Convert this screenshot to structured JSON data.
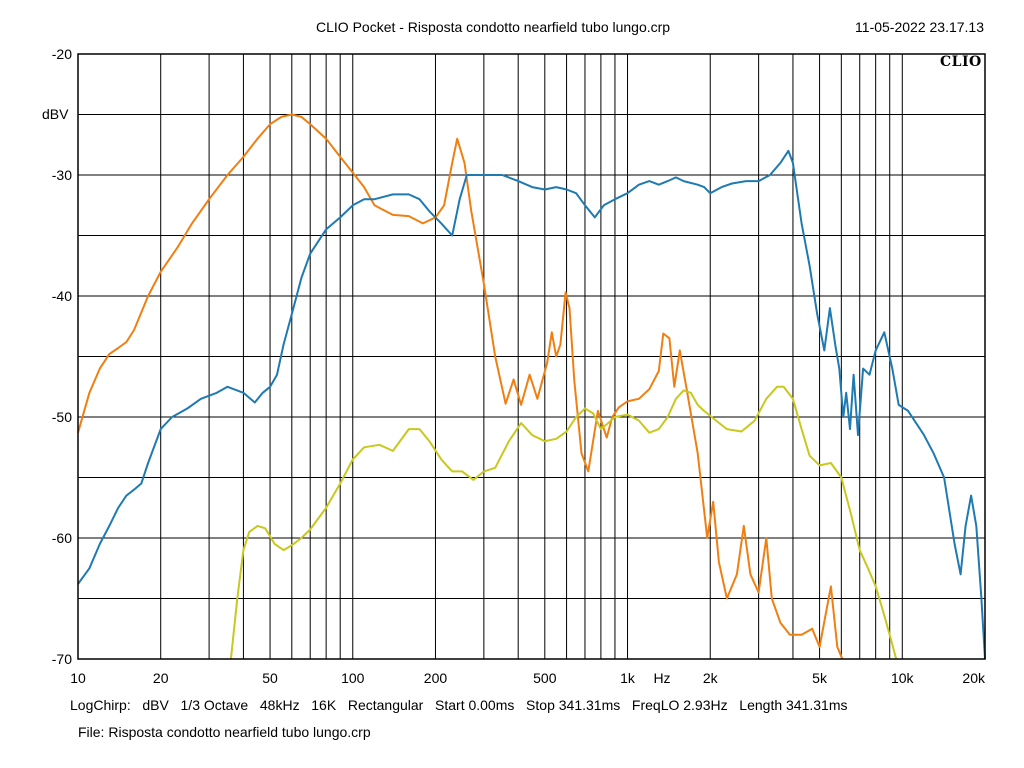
{
  "header": {
    "title": "CLIO Pocket - Risposta condotto nearfield tubo lungo.crp",
    "timestamp": "11-05-2022 23.17.13",
    "brand": "CLIO"
  },
  "footer": {
    "params": [
      "LogChirp:",
      "dBV",
      "1/3 Octave",
      "48kHz",
      "16K",
      "Rectangular",
      "Start 0.00ms",
      "Stop 341.31ms",
      "FreqLO 2.93Hz",
      "Length 341.31ms"
    ],
    "file_label": "File:",
    "file_name": "Risposta condotto nearfield tubo lungo.crp"
  },
  "chart_data": {
    "type": "line",
    "title": "CLIO Pocket - Risposta condotto nearfield tubo lungo.crp",
    "xlabel": "Hz",
    "ylabel": "dBV",
    "x_scale": "log",
    "xlim": [
      10,
      20000
    ],
    "ylim": [
      -70,
      -20
    ],
    "grid": true,
    "x_tick_labels": [
      {
        "value": 10,
        "label": "10"
      },
      {
        "value": 20,
        "label": "20"
      },
      {
        "value": 50,
        "label": "50"
      },
      {
        "value": 100,
        "label": "100"
      },
      {
        "value": 200,
        "label": "200"
      },
      {
        "value": 500,
        "label": "500"
      },
      {
        "value": 1000,
        "label": "1k"
      },
      {
        "value": 2000,
        "label": "2k"
      },
      {
        "value": 5000,
        "label": "5k"
      },
      {
        "value": 10000,
        "label": "10k"
      },
      {
        "value": 20000,
        "label": "20k"
      }
    ],
    "y_tick_labels": [
      {
        "value": -20,
        "label": "-20"
      },
      {
        "value": -30,
        "label": "-30"
      },
      {
        "value": -40,
        "label": "-40"
      },
      {
        "value": -50,
        "label": "-50"
      },
      {
        "value": -60,
        "label": "-60"
      },
      {
        "value": -70,
        "label": "-70"
      }
    ],
    "series": [
      {
        "color": "#f07f12",
        "points": [
          [
            10,
            -51.3
          ],
          [
            11,
            -48
          ],
          [
            12,
            -46
          ],
          [
            13,
            -44.8
          ],
          [
            14,
            -44.3
          ],
          [
            15,
            -43.8
          ],
          [
            16,
            -42.8
          ],
          [
            18,
            -40
          ],
          [
            20,
            -38
          ],
          [
            23,
            -36
          ],
          [
            26,
            -34
          ],
          [
            30,
            -32
          ],
          [
            35,
            -30
          ],
          [
            40,
            -28.5
          ],
          [
            45,
            -27
          ],
          [
            50,
            -25.8
          ],
          [
            55,
            -25.2
          ],
          [
            60,
            -25
          ],
          [
            65,
            -25.2
          ],
          [
            70,
            -25.8
          ],
          [
            80,
            -27
          ],
          [
            90,
            -28.5
          ],
          [
            100,
            -29.8
          ],
          [
            110,
            -31
          ],
          [
            120,
            -32.5
          ],
          [
            140,
            -33.3
          ],
          [
            160,
            -33.4
          ],
          [
            180,
            -34
          ],
          [
            200,
            -33.5
          ],
          [
            215,
            -32.5
          ],
          [
            230,
            -29
          ],
          [
            240,
            -27
          ],
          [
            255,
            -29
          ],
          [
            270,
            -33
          ],
          [
            300,
            -39
          ],
          [
            330,
            -45
          ],
          [
            360,
            -48.9
          ],
          [
            385,
            -46.9
          ],
          [
            410,
            -49
          ],
          [
            440,
            -46.5
          ],
          [
            470,
            -48.5
          ],
          [
            510,
            -45.5
          ],
          [
            530,
            -43
          ],
          [
            550,
            -45
          ],
          [
            570,
            -44
          ],
          [
            595,
            -39.7
          ],
          [
            615,
            -41
          ],
          [
            640,
            -47
          ],
          [
            680,
            -53
          ],
          [
            720,
            -54.5
          ],
          [
            780,
            -49.5
          ],
          [
            840,
            -51.7
          ],
          [
            880,
            -50
          ],
          [
            930,
            -49.2
          ],
          [
            1000,
            -48.7
          ],
          [
            1100,
            -48.5
          ],
          [
            1200,
            -47.7
          ],
          [
            1300,
            -46.2
          ],
          [
            1350,
            -43.1
          ],
          [
            1420,
            -43.5
          ],
          [
            1480,
            -47.5
          ],
          [
            1550,
            -44.5
          ],
          [
            1650,
            -48
          ],
          [
            1800,
            -53
          ],
          [
            1950,
            -60
          ],
          [
            2050,
            -57
          ],
          [
            2150,
            -62
          ],
          [
            2300,
            -65
          ],
          [
            2500,
            -63
          ],
          [
            2650,
            -59
          ],
          [
            2800,
            -63
          ],
          [
            3000,
            -64.5
          ],
          [
            3200,
            -60
          ],
          [
            3350,
            -65
          ],
          [
            3600,
            -67
          ],
          [
            3900,
            -68
          ],
          [
            4300,
            -68
          ],
          [
            4700,
            -67.5
          ],
          [
            5000,
            -69
          ],
          [
            5500,
            -64
          ],
          [
            5800,
            -69
          ],
          [
            6050,
            -70
          ]
        ]
      },
      {
        "color": "#1f7ab2",
        "points": [
          [
            10,
            -63.8
          ],
          [
            11,
            -62.5
          ],
          [
            12,
            -60.5
          ],
          [
            13,
            -59
          ],
          [
            14,
            -57.5
          ],
          [
            15,
            -56.5
          ],
          [
            16,
            -56
          ],
          [
            17,
            -55.5
          ],
          [
            18,
            -53.8
          ],
          [
            20,
            -51
          ],
          [
            22,
            -50
          ],
          [
            25,
            -49.3
          ],
          [
            28,
            -48.5
          ],
          [
            32,
            -48
          ],
          [
            35,
            -47.5
          ],
          [
            40,
            -48
          ],
          [
            44,
            -48.8
          ],
          [
            47,
            -48
          ],
          [
            50,
            -47.5
          ],
          [
            53,
            -46.5
          ],
          [
            56,
            -44
          ],
          [
            60,
            -41.5
          ],
          [
            65,
            -38.5
          ],
          [
            70,
            -36.5
          ],
          [
            80,
            -34.5
          ],
          [
            90,
            -33.5
          ],
          [
            100,
            -32.5
          ],
          [
            110,
            -32
          ],
          [
            120,
            -32
          ],
          [
            140,
            -31.6
          ],
          [
            160,
            -31.6
          ],
          [
            175,
            -32
          ],
          [
            190,
            -33
          ],
          [
            210,
            -34
          ],
          [
            230,
            -35
          ],
          [
            245,
            -32
          ],
          [
            260,
            -30
          ],
          [
            300,
            -30
          ],
          [
            350,
            -30
          ],
          [
            400,
            -30.5
          ],
          [
            450,
            -31
          ],
          [
            500,
            -31.2
          ],
          [
            550,
            -31
          ],
          [
            600,
            -31.2
          ],
          [
            650,
            -31.5
          ],
          [
            700,
            -32.5
          ],
          [
            760,
            -33.5
          ],
          [
            820,
            -32.5
          ],
          [
            900,
            -32
          ],
          [
            1000,
            -31.5
          ],
          [
            1100,
            -30.8
          ],
          [
            1200,
            -30.5
          ],
          [
            1300,
            -30.8
          ],
          [
            1400,
            -30.5
          ],
          [
            1500,
            -30.2
          ],
          [
            1600,
            -30.5
          ],
          [
            1800,
            -30.8
          ],
          [
            1900,
            -31
          ],
          [
            2000,
            -31.5
          ],
          [
            2200,
            -31
          ],
          [
            2400,
            -30.7
          ],
          [
            2700,
            -30.5
          ],
          [
            3000,
            -30.5
          ],
          [
            3300,
            -30
          ],
          [
            3600,
            -29
          ],
          [
            3850,
            -28
          ],
          [
            4000,
            -29
          ],
          [
            4300,
            -34
          ],
          [
            4600,
            -37.5
          ],
          [
            4900,
            -41.5
          ],
          [
            5200,
            -44.5
          ],
          [
            5450,
            -41
          ],
          [
            5700,
            -44
          ],
          [
            5900,
            -46
          ],
          [
            6100,
            -50
          ],
          [
            6250,
            -48
          ],
          [
            6450,
            -51
          ],
          [
            6650,
            -46.5
          ],
          [
            6900,
            -51.5
          ],
          [
            7200,
            -46
          ],
          [
            7600,
            -46.5
          ],
          [
            8000,
            -44.5
          ],
          [
            8600,
            -43
          ],
          [
            9200,
            -46
          ],
          [
            9700,
            -49
          ],
          [
            10500,
            -49.5
          ],
          [
            12000,
            -51.5
          ],
          [
            13000,
            -53
          ],
          [
            14200,
            -55
          ],
          [
            15500,
            -60.5
          ],
          [
            16300,
            -63
          ],
          [
            17000,
            -59
          ],
          [
            17800,
            -56.5
          ],
          [
            18600,
            -59
          ],
          [
            19400,
            -65
          ],
          [
            20000,
            -70
          ]
        ]
      },
      {
        "color": "#c8c81e",
        "points": [
          [
            36,
            -70
          ],
          [
            38,
            -65
          ],
          [
            40,
            -61
          ],
          [
            42,
            -59.5
          ],
          [
            45,
            -59
          ],
          [
            48,
            -59.2
          ],
          [
            52,
            -60.5
          ],
          [
            56,
            -61
          ],
          [
            60,
            -60.6
          ],
          [
            65,
            -60
          ],
          [
            70,
            -59.3
          ],
          [
            80,
            -57.5
          ],
          [
            90,
            -55.5
          ],
          [
            100,
            -53.5
          ],
          [
            110,
            -52.5
          ],
          [
            125,
            -52.3
          ],
          [
            140,
            -52.8
          ],
          [
            160,
            -51
          ],
          [
            175,
            -51
          ],
          [
            190,
            -52
          ],
          [
            210,
            -53.5
          ],
          [
            230,
            -54.5
          ],
          [
            250,
            -54.5
          ],
          [
            275,
            -55.2
          ],
          [
            300,
            -54.5
          ],
          [
            330,
            -54.2
          ],
          [
            370,
            -52
          ],
          [
            410,
            -50.5
          ],
          [
            450,
            -51.5
          ],
          [
            500,
            -52
          ],
          [
            550,
            -51.8
          ],
          [
            600,
            -51.2
          ],
          [
            650,
            -50
          ],
          [
            700,
            -49.3
          ],
          [
            750,
            -49.7
          ],
          [
            800,
            -51
          ],
          [
            850,
            -50.5
          ],
          [
            900,
            -50
          ],
          [
            1000,
            -49.8
          ],
          [
            1100,
            -50.3
          ],
          [
            1200,
            -51.3
          ],
          [
            1300,
            -51
          ],
          [
            1400,
            -50
          ],
          [
            1500,
            -48.5
          ],
          [
            1600,
            -47.8
          ],
          [
            1700,
            -48
          ],
          [
            1800,
            -49
          ],
          [
            1900,
            -49.5
          ],
          [
            2100,
            -50.3
          ],
          [
            2300,
            -51
          ],
          [
            2600,
            -51.2
          ],
          [
            2900,
            -50.3
          ],
          [
            3200,
            -48.5
          ],
          [
            3500,
            -47.5
          ],
          [
            3700,
            -47.5
          ],
          [
            4000,
            -48.5
          ],
          [
            4300,
            -51
          ],
          [
            4600,
            -53.2
          ],
          [
            5000,
            -54
          ],
          [
            5500,
            -53.8
          ],
          [
            6000,
            -55
          ],
          [
            6500,
            -58
          ],
          [
            7000,
            -61
          ],
          [
            7500,
            -62.5
          ],
          [
            8000,
            -64
          ],
          [
            8500,
            -66
          ],
          [
            9000,
            -68
          ],
          [
            9500,
            -70
          ]
        ]
      }
    ]
  }
}
